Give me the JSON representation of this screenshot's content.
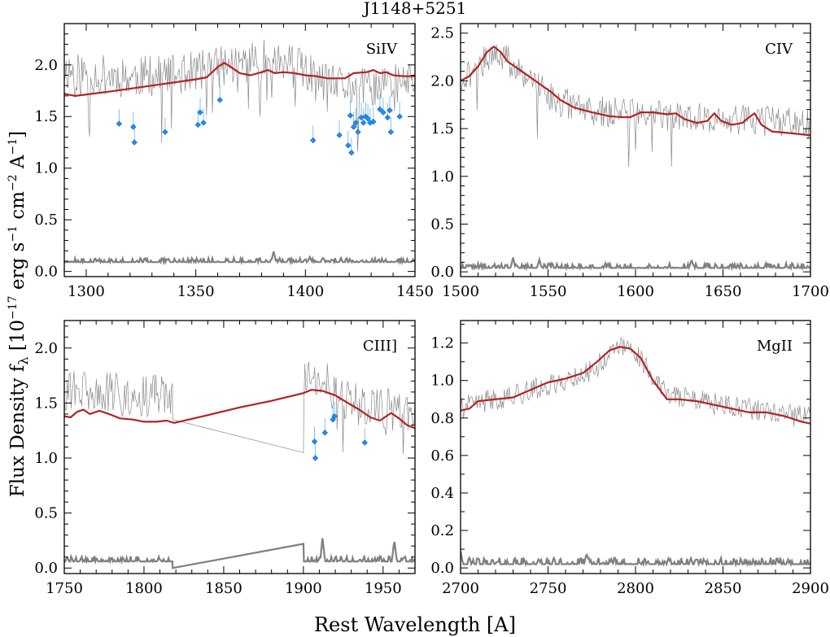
{
  "figure": {
    "title": "J1148+5251",
    "xlabel": "Rest Wavelength [A]",
    "ylabel_main": "Flux Density f",
    "ylabel_sub": "λ",
    "ylabel_unit_a": " [10",
    "ylabel_exp1": "−17",
    "ylabel_unit_b": " erg s",
    "ylabel_exp2": "−1",
    "ylabel_unit_c": " cm",
    "ylabel_exp3": "−2",
    "ylabel_unit_d": " A",
    "ylabel_exp4": "−1",
    "ylabel_unit_e": "]"
  },
  "colors": {
    "spectrum": "#8a8a8a",
    "model": "#b22222",
    "error": "#808080",
    "absorber": "#1e90ff"
  },
  "chart_data": [
    {
      "type": "line",
      "label": "SiIV",
      "xlim": [
        1290,
        1450
      ],
      "ylim": [
        -0.05,
        2.4
      ],
      "xticks": [
        1300,
        1350,
        1400,
        1450
      ],
      "xtick_labels": [
        "1300",
        "1350",
        "1400",
        "1450"
      ],
      "yticks": [
        0.0,
        0.5,
        1.0,
        1.5,
        2.0
      ],
      "ytick_labels": [
        "0.0",
        "0.5",
        "1.0",
        "1.5",
        "2.0"
      ],
      "spectrum": {
        "name": "observed",
        "seed": 11,
        "noise": 0.2,
        "spike_rate": 0.06,
        "spike_depth": 0.55,
        "trend": [
          [
            1290,
            1.95
          ],
          [
            1300,
            1.92
          ],
          [
            1320,
            1.88
          ],
          [
            1340,
            1.9
          ],
          [
            1360,
            1.98
          ],
          [
            1380,
            2.05
          ],
          [
            1395,
            2.0
          ],
          [
            1410,
            1.8
          ],
          [
            1430,
            1.78
          ],
          [
            1450,
            1.85
          ]
        ]
      },
      "model": {
        "name": "model",
        "points": [
          [
            1290,
            1.72
          ],
          [
            1295,
            1.7
          ],
          [
            1310,
            1.74
          ],
          [
            1330,
            1.8
          ],
          [
            1350,
            1.86
          ],
          [
            1355,
            1.88
          ],
          [
            1360,
            1.98
          ],
          [
            1363,
            2.02
          ],
          [
            1366,
            1.98
          ],
          [
            1370,
            1.92
          ],
          [
            1375,
            1.9
          ],
          [
            1380,
            1.93
          ],
          [
            1383,
            1.95
          ],
          [
            1386,
            1.92
          ],
          [
            1390,
            1.93
          ],
          [
            1395,
            1.92
          ],
          [
            1400,
            1.9
          ],
          [
            1405,
            1.89
          ],
          [
            1410,
            1.87
          ],
          [
            1418,
            1.87
          ],
          [
            1422,
            1.92
          ],
          [
            1428,
            1.93
          ],
          [
            1431,
            1.95
          ],
          [
            1434,
            1.92
          ],
          [
            1437,
            1.93
          ],
          [
            1440,
            1.9
          ],
          [
            1445,
            1.89
          ],
          [
            1450,
            1.89
          ]
        ]
      },
      "error": {
        "name": "error",
        "seed": 12,
        "base": 0.09,
        "amp": 0.04,
        "peaks": [
          [
            1385.5,
            0.2
          ],
          [
            1402,
            0.14
          ]
        ]
      },
      "absorbers": [
        [
          1315,
          1.43
        ],
        [
          1321.5,
          1.4
        ],
        [
          1322,
          1.25
        ],
        [
          1336,
          1.35
        ],
        [
          1351,
          1.42
        ],
        [
          1352,
          1.54
        ],
        [
          1353.5,
          1.44
        ],
        [
          1361,
          1.66
        ],
        [
          1403.5,
          1.27
        ],
        [
          1415.5,
          1.32
        ],
        [
          1419.5,
          1.22
        ],
        [
          1420.5,
          1.51
        ],
        [
          1421,
          1.15
        ],
        [
          1422,
          1.4
        ],
        [
          1423,
          1.44
        ],
        [
          1424,
          1.35
        ],
        [
          1425.5,
          1.49
        ],
        [
          1426.5,
          1.44
        ],
        [
          1427.5,
          1.5
        ],
        [
          1428.5,
          1.48
        ],
        [
          1429.5,
          1.44
        ],
        [
          1431,
          1.45
        ],
        [
          1434,
          1.57
        ],
        [
          1435.5,
          1.54
        ],
        [
          1437.5,
          1.49
        ],
        [
          1438.5,
          1.56
        ],
        [
          1439,
          1.35
        ],
        [
          1443,
          1.5
        ]
      ]
    },
    {
      "type": "line",
      "label": "CIV",
      "xlim": [
        1500,
        1700
      ],
      "ylim": [
        -0.05,
        2.6
      ],
      "xticks": [
        1500,
        1550,
        1600,
        1650,
        1700
      ],
      "xtick_labels": [
        "1500",
        "1550",
        "1600",
        "1650",
        "1700"
      ],
      "yticks": [
        0.0,
        0.5,
        1.0,
        1.5,
        2.0,
        2.5
      ],
      "ytick_labels": [
        "0.0",
        "0.5",
        "1.0",
        "1.5",
        "2.0",
        "2.5"
      ],
      "spectrum": {
        "name": "observed",
        "seed": 21,
        "noise": 0.16,
        "spike_rate": 0.01,
        "spike_depth": 0.5,
        "dips": [
          [
            1596,
            1.1
          ]
        ],
        "trend": [
          [
            1500,
            2.0
          ],
          [
            1510,
            2.15
          ],
          [
            1518,
            2.3
          ],
          [
            1525,
            2.25
          ],
          [
            1540,
            2.0
          ],
          [
            1555,
            1.8
          ],
          [
            1570,
            1.7
          ],
          [
            1600,
            1.65
          ],
          [
            1650,
            1.6
          ],
          [
            1700,
            1.55
          ]
        ]
      },
      "model": {
        "name": "model",
        "points": [
          [
            1500,
            2.0
          ],
          [
            1505,
            2.05
          ],
          [
            1510,
            2.15
          ],
          [
            1515,
            2.3
          ],
          [
            1519,
            2.36
          ],
          [
            1523,
            2.3
          ],
          [
            1527,
            2.2
          ],
          [
            1535,
            2.1
          ],
          [
            1545,
            1.97
          ],
          [
            1552,
            1.88
          ],
          [
            1557,
            1.8
          ],
          [
            1565,
            1.72
          ],
          [
            1575,
            1.67
          ],
          [
            1585,
            1.63
          ],
          [
            1592,
            1.62
          ],
          [
            1597,
            1.62
          ],
          [
            1603,
            1.67
          ],
          [
            1610,
            1.67
          ],
          [
            1618,
            1.65
          ],
          [
            1623,
            1.66
          ],
          [
            1628,
            1.6
          ],
          [
            1635,
            1.56
          ],
          [
            1641,
            1.58
          ],
          [
            1645,
            1.66
          ],
          [
            1649,
            1.58
          ],
          [
            1655,
            1.54
          ],
          [
            1661,
            1.56
          ],
          [
            1665,
            1.62
          ],
          [
            1668,
            1.66
          ],
          [
            1672,
            1.54
          ],
          [
            1678,
            1.47
          ],
          [
            1690,
            1.45
          ],
          [
            1700,
            1.43
          ]
        ]
      },
      "error": {
        "name": "error",
        "seed": 22,
        "base": 0.04,
        "amp": 0.05,
        "peaks": [
          [
            1530,
            0.15
          ],
          [
            1545,
            0.13
          ],
          [
            1632,
            0.13
          ]
        ]
      },
      "absorbers": []
    },
    {
      "type": "line",
      "label": "CIII]",
      "xlim": [
        1750,
        1970
      ],
      "ylim": [
        -0.05,
        2.25
      ],
      "xticks": [
        1750,
        1800,
        1850,
        1900,
        1950
      ],
      "xtick_labels": [
        "1750",
        "1800",
        "1850",
        "1900",
        "1950"
      ],
      "yticks": [
        0.0,
        0.5,
        1.0,
        1.5,
        2.0
      ],
      "ytick_labels": [
        "0.0",
        "0.5",
        "1.0",
        "1.5",
        "2.0"
      ],
      "spectrum": {
        "name": "observed",
        "seed": 31,
        "noise": 0.2,
        "spike_rate": 0.04,
        "spike_depth": 0.4,
        "gap": [
          1818,
          1900
        ],
        "gap_levels": [
          1.35,
          1.05
        ],
        "trend": [
          [
            1750,
            1.62
          ],
          [
            1780,
            1.58
          ],
          [
            1810,
            1.57
          ],
          [
            1818,
            1.6
          ],
          [
            1900,
            1.7
          ],
          [
            1910,
            1.75
          ],
          [
            1930,
            1.5
          ],
          [
            1950,
            1.45
          ],
          [
            1970,
            1.35
          ]
        ]
      },
      "model": {
        "name": "model",
        "points": [
          [
            1750,
            1.38
          ],
          [
            1754,
            1.37
          ],
          [
            1758,
            1.42
          ],
          [
            1762,
            1.44
          ],
          [
            1766,
            1.4
          ],
          [
            1772,
            1.43
          ],
          [
            1778,
            1.4
          ],
          [
            1785,
            1.36
          ],
          [
            1793,
            1.35
          ],
          [
            1800,
            1.33
          ],
          [
            1808,
            1.33
          ],
          [
            1814,
            1.34
          ],
          [
            1819,
            1.32
          ],
          [
            1840,
            1.39
          ],
          [
            1860,
            1.46
          ],
          [
            1880,
            1.52
          ],
          [
            1900,
            1.59
          ],
          [
            1905,
            1.62
          ],
          [
            1912,
            1.61
          ],
          [
            1920,
            1.57
          ],
          [
            1928,
            1.5
          ],
          [
            1935,
            1.44
          ],
          [
            1942,
            1.37
          ],
          [
            1948,
            1.34
          ],
          [
            1955,
            1.41
          ],
          [
            1960,
            1.36
          ],
          [
            1965,
            1.3
          ],
          [
            1970,
            1.27
          ]
        ]
      },
      "error": {
        "name": "error",
        "seed": 32,
        "base": 0.06,
        "amp": 0.05,
        "peaks": [
          [
            1912,
            0.28
          ],
          [
            1957,
            0.26
          ]
        ],
        "gap": [
          1818,
          1900
        ],
        "gap_levels": [
          0.0,
          0.22
        ]
      },
      "absorbers": [
        [
          1907,
          1.15
        ],
        [
          1907.5,
          1.0
        ],
        [
          1913.5,
          1.23
        ],
        [
          1918.5,
          1.35
        ],
        [
          1919.5,
          1.38
        ],
        [
          1938.5,
          1.14
        ]
      ]
    },
    {
      "type": "line",
      "label": "MgII",
      "xlim": [
        2700,
        2900
      ],
      "ylim": [
        -0.03,
        1.32
      ],
      "xticks": [
        2700,
        2750,
        2800,
        2850,
        2900
      ],
      "xtick_labels": [
        "2700",
        "2750",
        "2800",
        "2850",
        "2900"
      ],
      "yticks": [
        0.0,
        0.2,
        0.4,
        0.6,
        0.8,
        1.0,
        1.2
      ],
      "ytick_labels": [
        "0.0",
        "0.2",
        "0.4",
        "0.6",
        "0.8",
        "1.0",
        "1.2"
      ],
      "spectrum": {
        "name": "observed",
        "seed": 41,
        "noise": 0.06,
        "spike_rate": 0.0,
        "spike_depth": 0.0,
        "trend": [
          [
            2700,
            0.85
          ],
          [
            2710,
            0.88
          ],
          [
            2730,
            0.92
          ],
          [
            2760,
            1.0
          ],
          [
            2775,
            1.05
          ],
          [
            2790,
            1.18
          ],
          [
            2800,
            1.16
          ],
          [
            2815,
            0.95
          ],
          [
            2830,
            0.9
          ],
          [
            2860,
            0.85
          ],
          [
            2900,
            0.8
          ]
        ]
      },
      "model": {
        "name": "model",
        "points": [
          [
            2700,
            0.84
          ],
          [
            2705,
            0.85
          ],
          [
            2710,
            0.89
          ],
          [
            2720,
            0.9
          ],
          [
            2730,
            0.91
          ],
          [
            2740,
            0.95
          ],
          [
            2750,
            0.99
          ],
          [
            2760,
            1.01
          ],
          [
            2770,
            1.04
          ],
          [
            2778,
            1.1
          ],
          [
            2785,
            1.16
          ],
          [
            2791,
            1.18
          ],
          [
            2797,
            1.17
          ],
          [
            2803,
            1.12
          ],
          [
            2810,
            1.0
          ],
          [
            2818,
            0.9
          ],
          [
            2825,
            0.9
          ],
          [
            2835,
            0.89
          ],
          [
            2845,
            0.87
          ],
          [
            2855,
            0.85
          ],
          [
            2865,
            0.83
          ],
          [
            2875,
            0.83
          ],
          [
            2885,
            0.81
          ],
          [
            2895,
            0.78
          ],
          [
            2900,
            0.77
          ]
        ]
      },
      "error": {
        "name": "error",
        "seed": 42,
        "base": 0.02,
        "amp": 0.035,
        "peaks": [
          [
            2700,
            0.09
          ],
          [
            2772,
            0.08
          ]
        ]
      },
      "absorbers": []
    }
  ]
}
